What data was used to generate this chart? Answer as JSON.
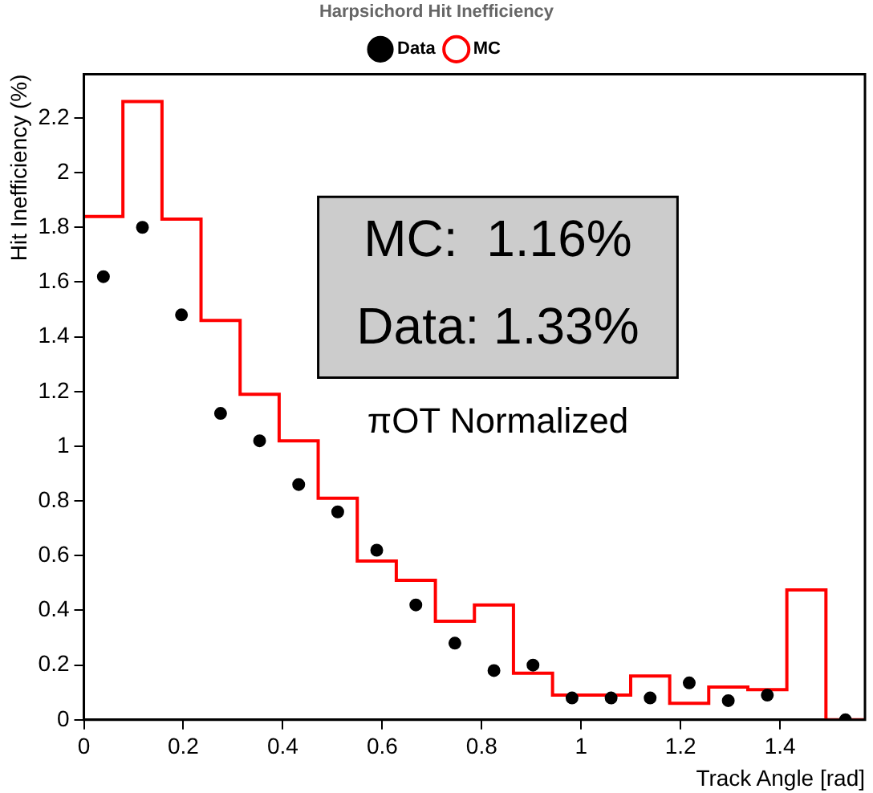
{
  "chart_data": {
    "type": "histogram",
    "legend_title": "Harpsichord Hit Inefficiency",
    "xlabel": "Track Angle [rad]",
    "ylabel": "Hit Inefficiency (%)",
    "bins": [
      0,
      0.0785,
      0.1571,
      0.2356,
      0.3142,
      0.3927,
      0.4712,
      0.5498,
      0.6283,
      0.7069,
      0.7854,
      0.8639,
      0.9425,
      1.021,
      1.0996,
      1.1781,
      1.2566,
      1.3352,
      1.4137,
      1.4923,
      1.5708
    ],
    "series": [
      {
        "name": "Data",
        "type": "scatter",
        "color": "#000000",
        "marker": "circle",
        "x": [
          0.0393,
          0.1178,
          0.1963,
          0.2749,
          0.3534,
          0.432,
          0.5105,
          0.589,
          0.6676,
          0.7461,
          0.8247,
          0.9032,
          0.9817,
          1.0603,
          1.1388,
          1.2174,
          1.2959,
          1.3744,
          1.453,
          1.5315
        ],
        "values": [
          1.62,
          1.8,
          1.48,
          1.12,
          1.02,
          0.86,
          0.76,
          0.62,
          0.42,
          0.28,
          0.18,
          0.2,
          0.08,
          0.08,
          0.08,
          0.135,
          0.07,
          0.09,
          null,
          0
        ]
      },
      {
        "name": "MC",
        "type": "histogram",
        "color": "#ff0000",
        "values": [
          1.84,
          2.26,
          1.83,
          1.46,
          1.19,
          1.02,
          0.81,
          0.58,
          0.51,
          0.36,
          0.42,
          0.17,
          0.09,
          0.09,
          0.16,
          0.06,
          0.12,
          0.11,
          0.475,
          0
        ]
      }
    ],
    "xlim": [
      0,
      1.5708
    ],
    "xticks": [
      0,
      0.2,
      0.4,
      0.6,
      0.8,
      1,
      1.2,
      1.4
    ],
    "ylim": [
      0,
      2.36
    ],
    "yticks": [
      0,
      0.2,
      0.4,
      0.6,
      0.8,
      1,
      1.2,
      1.4,
      1.6,
      1.8,
      2,
      2.2
    ],
    "grid": false,
    "legend": "top left",
    "annotations": [
      "MC:  1.16%",
      "Data: 1.33%",
      "πOT Normalized"
    ]
  }
}
